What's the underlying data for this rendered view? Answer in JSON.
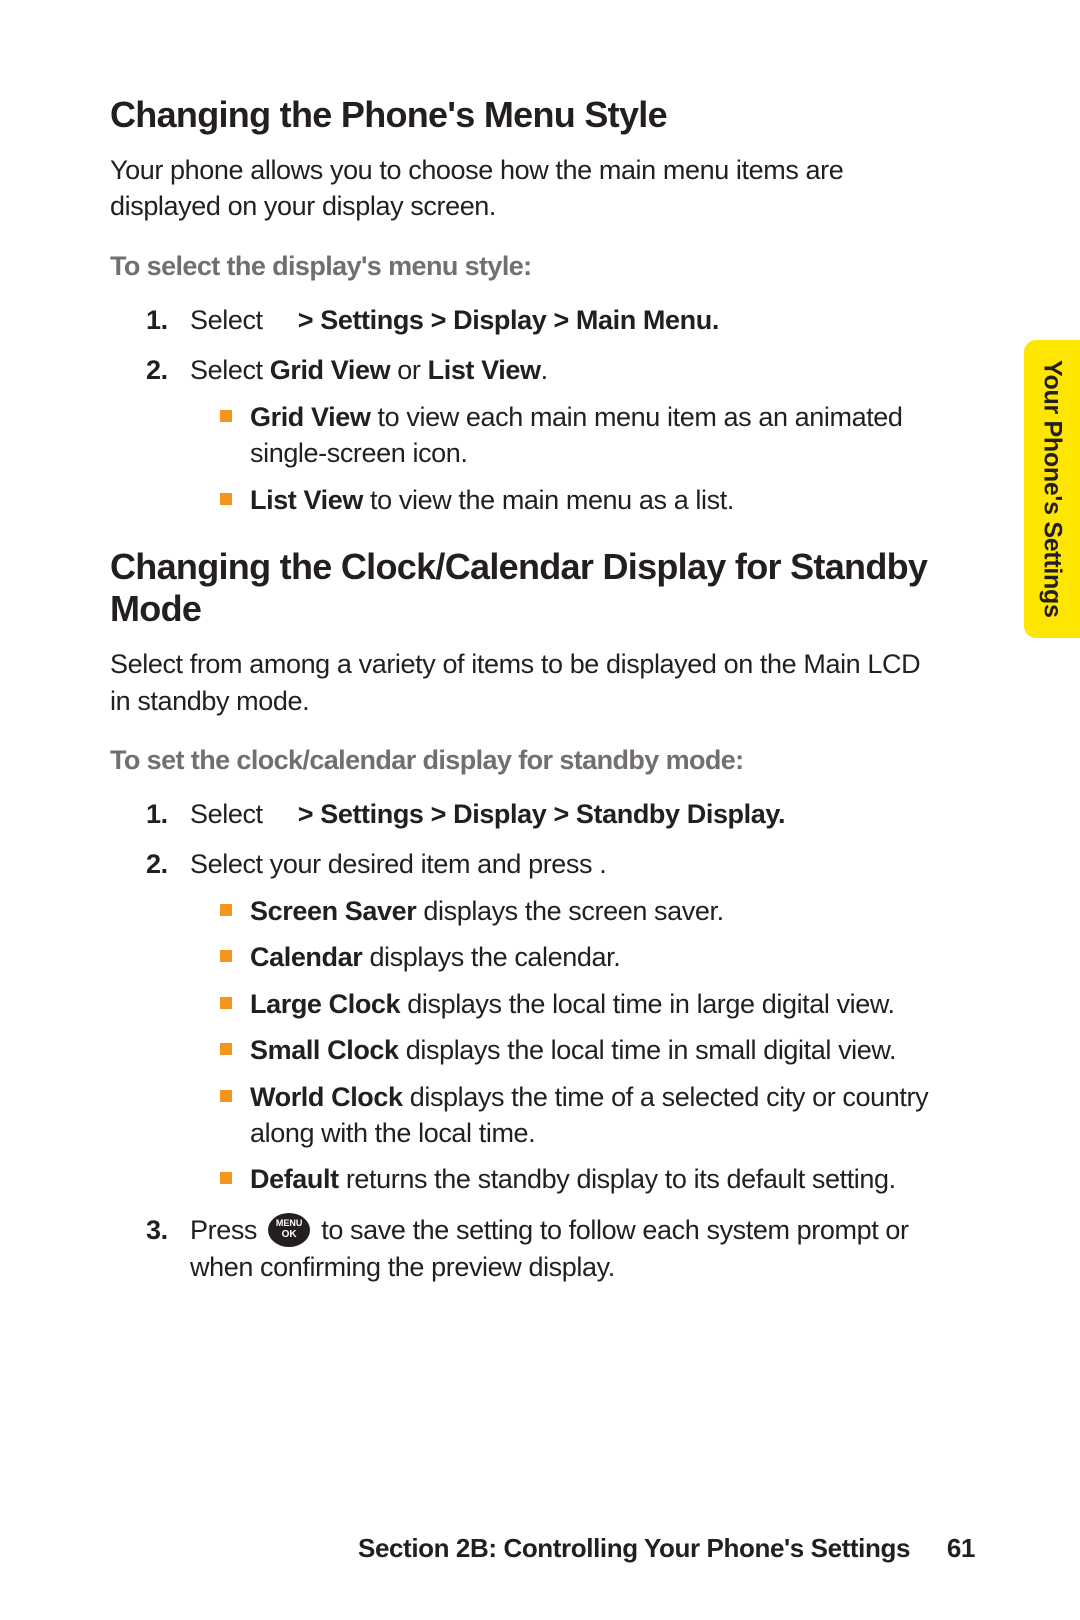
{
  "colors": {
    "text": "#231f20",
    "subhead": "#726f6d",
    "bullet": "#f7941d",
    "tab_bg": "#ffe600",
    "page_bg": "#ffffff"
  },
  "typography": {
    "h2_size_pt": 36,
    "body_size_pt": 27,
    "subhead_size_pt": 27,
    "footer_size_pt": 26
  },
  "side_tab": "Your Phone's Settings",
  "section1": {
    "title": "Changing the Phone's Menu Style",
    "intro": "Your phone allows you to choose how the main menu items are displayed on your display screen.",
    "subhead": "To select the display's menu style:",
    "step1_prefix": "Select",
    "step1_path": "> Settings > Display > Main Menu",
    "step2_prefix": "Select ",
    "step2_opt1": "Grid View",
    "step2_mid": " or ",
    "step2_opt2": "List View",
    "bullets": [
      {
        "b": "Grid View",
        "rest": " to view each main menu item as an animated single-screen icon."
      },
      {
        "b": "List View",
        "rest": " to view the main menu as a list."
      }
    ]
  },
  "section2": {
    "title": "Changing the Clock/Calendar Display for Standby Mode",
    "intro": "Select from among a variety of items to be displayed on the Main LCD in standby mode.",
    "subhead": "To set the clock/calendar display for standby mode:",
    "step1_prefix": "Select",
    "step1_path": "> Settings > Display > Standby Display",
    "step2": "Select your desired item and press       .",
    "bullets": [
      {
        "b": "Screen Saver",
        "rest": " displays the screen saver."
      },
      {
        "b": "Calendar",
        "rest": " displays the calendar."
      },
      {
        "b": "Large Clock",
        "rest": " displays the local time in large digital view."
      },
      {
        "b": "Small Clock",
        "rest": " displays the local time in small digital view."
      },
      {
        "b": "World Clock",
        "rest": " displays the time of a selected city or country along with the local time."
      },
      {
        "b": "Default",
        "rest": " returns the standby display to its default setting."
      }
    ],
    "step3_a": "Press ",
    "step3_b": " to save the setting to follow each system prompt or when confirming the preview display."
  },
  "icon": {
    "line1": "MENU",
    "line2": "OK"
  },
  "footer": {
    "label": "Section 2B: Controlling Your Phone's Settings",
    "page": "61"
  }
}
